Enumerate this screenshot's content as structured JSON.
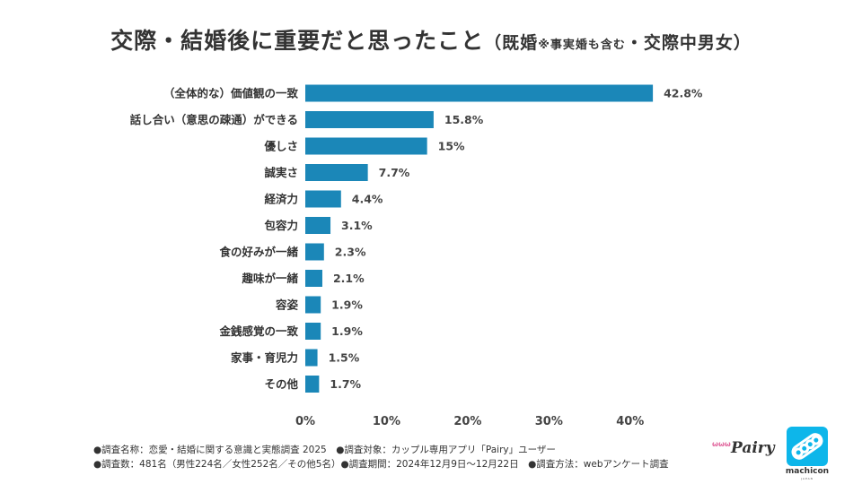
{
  "title": {
    "main": "交際・結婚後に重要だと思ったこと",
    "paren_open": "（既婚",
    "note": "※事実婚も含む",
    "paren_rest": "・交際中男女）"
  },
  "colors": {
    "bar": "#1b87b8",
    "text": "#333333",
    "pairy_pink": "#e26aa0",
    "machicon_blue": "#0db6ea"
  },
  "chart_data": {
    "type": "bar",
    "orientation": "horizontal",
    "title": "交際・結婚後に重要だと思ったこと（既婚※事実婚も含む・交際中男女）",
    "categories": [
      "（全体的な）価値観の一致",
      "話し合い（意思の疎通）ができる",
      "優しさ",
      "誠実さ",
      "経済力",
      "包容力",
      "食の好みが一緒",
      "趣味が一緒",
      "容姿",
      "金銭感覚の一致",
      "家事・育児力",
      "その他"
    ],
    "values": [
      42.8,
      15.8,
      15,
      7.7,
      4.4,
      3.1,
      2.3,
      2.1,
      1.9,
      1.9,
      1.5,
      1.7
    ],
    "value_labels": [
      "42.8%",
      "15.8%",
      "15%",
      "7.7%",
      "4.4%",
      "3.1%",
      "2.3%",
      "2.1%",
      "1.9%",
      "1.9%",
      "1.5%",
      "1.7%"
    ],
    "xlim": [
      0,
      45
    ],
    "ticks": [
      0,
      10,
      20,
      30,
      40
    ],
    "tick_labels": [
      "0%",
      "10%",
      "20%",
      "30%",
      "40%"
    ],
    "grid": false,
    "legend": "none"
  },
  "footer": {
    "line1": "●調査名称：恋愛・結婚に関する意識と実態調査 2025　●調査対象：カップル専用アプリ「Pairy」ユーザー",
    "line2": "●調査数：481名（男性224名／女性252名／その他5名）●調査期間：2024年12月9日～12月22日　●調査方法：webアンケート調査"
  },
  "logos": {
    "pairy_mark": "ωωω",
    "pairy": "Pairy",
    "machicon": "machicon",
    "machicon_sub": "JAPAN"
  }
}
